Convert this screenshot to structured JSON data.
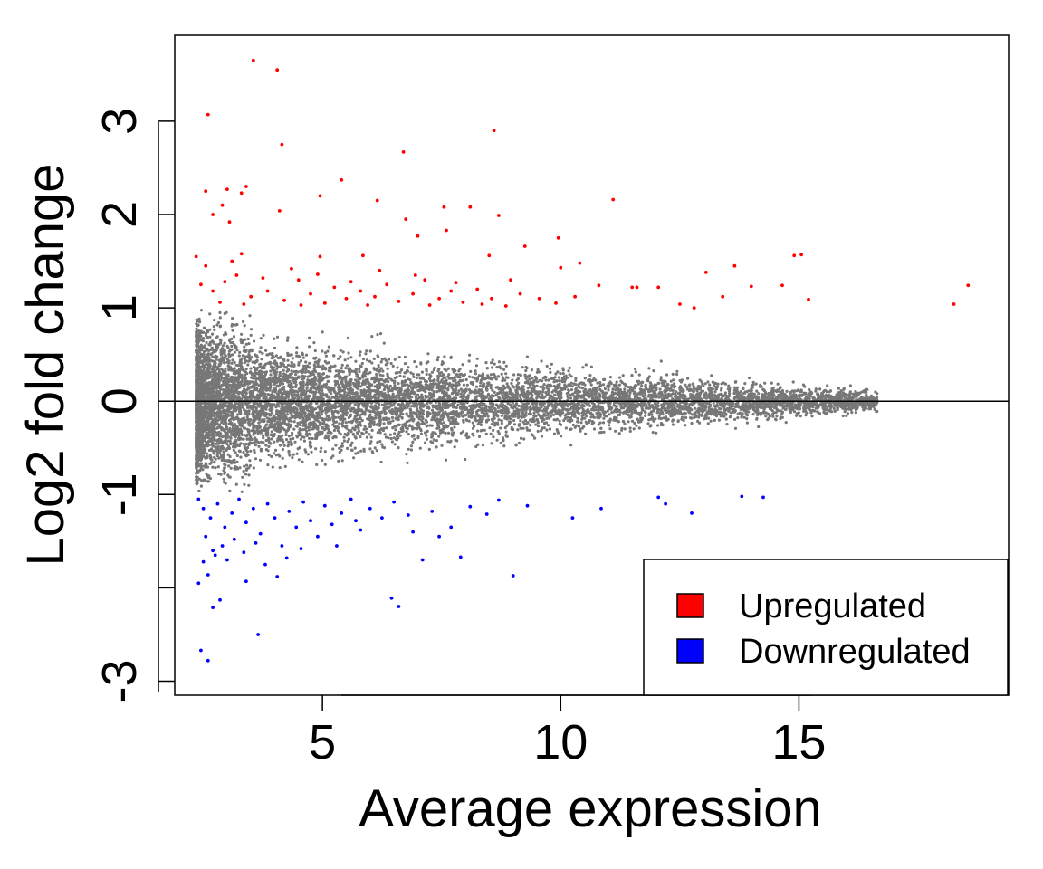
{
  "chart_data": {
    "type": "scatter",
    "xlabel": "Average expression",
    "ylabel": "Log2 fold change",
    "xlim": [
      1.9,
      19.4
    ],
    "ylim": [
      -3.15,
      3.92
    ],
    "x_ticks": [
      5,
      10,
      15
    ],
    "y_ticks": [
      -3,
      -2,
      -1,
      0,
      1,
      2,
      3
    ],
    "y_tick_labels": [
      "-3",
      "",
      "-1",
      "0",
      "1",
      "2",
      "3"
    ],
    "reference_line_y": 0,
    "grid": false,
    "legend": {
      "position": "bottom-right",
      "entries": [
        {
          "label": "Upregulated",
          "color": "#ff0000"
        },
        {
          "label": "Downregulated",
          "color": "#0000ff"
        }
      ]
    },
    "colors": {
      "nonsignificant": "#777777",
      "up": "#ff0000",
      "down": "#0000ff"
    },
    "series": [
      {
        "color": "#ff0000",
        "points": [
          [
            3.55,
            3.65
          ],
          [
            4.05,
            3.55
          ],
          [
            2.6,
            3.07
          ],
          [
            8.6,
            2.9
          ],
          [
            4.15,
            2.75
          ],
          [
            6.7,
            2.67
          ],
          [
            5.4,
            2.37
          ],
          [
            3.4,
            2.3
          ],
          [
            2.55,
            2.25
          ],
          [
            3.0,
            2.27
          ],
          [
            3.3,
            2.23
          ],
          [
            2.9,
            2.1
          ],
          [
            4.95,
            2.2
          ],
          [
            6.15,
            2.15
          ],
          [
            11.1,
            2.16
          ],
          [
            7.55,
            2.08
          ],
          [
            8.1,
            2.08
          ],
          [
            4.1,
            2.04
          ],
          [
            2.7,
            2.0
          ],
          [
            3.05,
            1.92
          ],
          [
            6.75,
            1.95
          ],
          [
            8.7,
            1.99
          ],
          [
            7.6,
            1.83
          ],
          [
            9.95,
            1.75
          ],
          [
            7.0,
            1.77
          ],
          [
            2.35,
            1.55
          ],
          [
            3.3,
            1.58
          ],
          [
            4.95,
            1.55
          ],
          [
            5.85,
            1.56
          ],
          [
            8.5,
            1.56
          ],
          [
            9.25,
            1.66
          ],
          [
            10.4,
            1.48
          ],
          [
            10.0,
            1.43
          ],
          [
            13.65,
            1.45
          ],
          [
            14.9,
            1.56
          ],
          [
            15.05,
            1.57
          ],
          [
            13.05,
            1.38
          ],
          [
            13.4,
            1.12
          ],
          [
            14.0,
            1.23
          ],
          [
            14.65,
            1.24
          ],
          [
            12.05,
            1.22
          ],
          [
            11.6,
            1.22
          ],
          [
            12.5,
            1.04
          ],
          [
            15.2,
            1.09
          ],
          [
            18.55,
            1.24
          ],
          [
            18.25,
            1.04
          ],
          [
            10.8,
            1.24
          ],
          [
            11.5,
            1.22
          ],
          [
            12.8,
            1.0
          ],
          [
            2.45,
            1.25
          ],
          [
            2.7,
            1.18
          ],
          [
            2.95,
            1.28
          ],
          [
            3.2,
            1.35
          ],
          [
            3.5,
            1.12
          ],
          [
            3.85,
            1.18
          ],
          [
            4.2,
            1.08
          ],
          [
            4.5,
            1.3
          ],
          [
            4.75,
            1.15
          ],
          [
            5.05,
            1.05
          ],
          [
            5.25,
            1.22
          ],
          [
            5.5,
            1.1
          ],
          [
            5.8,
            1.18
          ],
          [
            6.1,
            1.12
          ],
          [
            6.35,
            1.25
          ],
          [
            6.6,
            1.07
          ],
          [
            6.9,
            1.15
          ],
          [
            7.15,
            1.3
          ],
          [
            7.45,
            1.1
          ],
          [
            7.7,
            1.18
          ],
          [
            7.95,
            1.06
          ],
          [
            8.25,
            1.2
          ],
          [
            8.55,
            1.1
          ],
          [
            8.85,
            1.02
          ],
          [
            9.15,
            1.15
          ],
          [
            9.55,
            1.1
          ],
          [
            9.9,
            1.05
          ],
          [
            10.3,
            1.12
          ],
          [
            2.55,
            1.45
          ],
          [
            3.1,
            1.5
          ],
          [
            3.75,
            1.32
          ],
          [
            4.35,
            1.42
          ],
          [
            4.9,
            1.36
          ],
          [
            5.6,
            1.28
          ],
          [
            6.2,
            1.4
          ],
          [
            6.95,
            1.35
          ],
          [
            7.8,
            1.27
          ],
          [
            8.95,
            1.3
          ],
          [
            2.85,
            1.06
          ],
          [
            3.35,
            1.04
          ],
          [
            4.55,
            1.03
          ],
          [
            5.95,
            1.03
          ],
          [
            7.25,
            1.03
          ],
          [
            8.35,
            1.04
          ]
        ]
      },
      {
        "color": "#0000ff",
        "points": [
          [
            2.45,
            -2.67
          ],
          [
            2.6,
            -2.78
          ],
          [
            3.65,
            -2.5
          ],
          [
            6.6,
            -2.2
          ],
          [
            6.45,
            -2.11
          ],
          [
            2.7,
            -2.21
          ],
          [
            2.85,
            -2.13
          ],
          [
            9.0,
            -1.87
          ],
          [
            2.4,
            -1.95
          ],
          [
            3.4,
            -1.93
          ],
          [
            4.05,
            -1.88
          ],
          [
            2.6,
            -1.86
          ],
          [
            10.25,
            -1.25
          ],
          [
            10.85,
            -1.15
          ],
          [
            12.05,
            -1.03
          ],
          [
            12.2,
            -1.1
          ],
          [
            12.75,
            -1.2
          ],
          [
            13.8,
            -1.02
          ],
          [
            14.25,
            -1.03
          ],
          [
            7.1,
            -1.7
          ],
          [
            7.9,
            -1.67
          ],
          [
            7.45,
            -1.45
          ],
          [
            2.4,
            -1.05
          ],
          [
            2.5,
            -1.15
          ],
          [
            2.65,
            -1.25
          ],
          [
            2.8,
            -1.1
          ],
          [
            2.95,
            -1.35
          ],
          [
            3.1,
            -1.2
          ],
          [
            3.25,
            -1.05
          ],
          [
            3.4,
            -1.3
          ],
          [
            3.55,
            -1.15
          ],
          [
            3.7,
            -1.42
          ],
          [
            3.85,
            -1.1
          ],
          [
            4.0,
            -1.25
          ],
          [
            4.15,
            -1.55
          ],
          [
            4.3,
            -1.18
          ],
          [
            4.45,
            -1.35
          ],
          [
            4.6,
            -1.08
          ],
          [
            4.75,
            -1.28
          ],
          [
            4.9,
            -1.45
          ],
          [
            5.05,
            -1.12
          ],
          [
            5.2,
            -1.32
          ],
          [
            5.4,
            -1.2
          ],
          [
            5.6,
            -1.05
          ],
          [
            5.8,
            -1.38
          ],
          [
            6.0,
            -1.15
          ],
          [
            6.25,
            -1.25
          ],
          [
            6.5,
            -1.08
          ],
          [
            2.55,
            -1.45
          ],
          [
            2.7,
            -1.6
          ],
          [
            2.9,
            -1.55
          ],
          [
            3.15,
            -1.48
          ],
          [
            3.35,
            -1.62
          ],
          [
            3.6,
            -1.52
          ],
          [
            4.25,
            -1.68
          ],
          [
            4.55,
            -1.58
          ],
          [
            2.5,
            -1.72
          ],
          [
            2.75,
            -1.65
          ],
          [
            3.0,
            -1.7
          ],
          [
            3.8,
            -1.75
          ],
          [
            6.8,
            -1.22
          ],
          [
            7.3,
            -1.18
          ],
          [
            8.1,
            -1.13
          ],
          [
            8.45,
            -1.21
          ],
          [
            8.7,
            -1.06
          ],
          [
            9.3,
            -1.12
          ],
          [
            6.9,
            -1.4
          ],
          [
            7.7,
            -1.35
          ],
          [
            5.3,
            -1.55
          ],
          [
            5.7,
            -1.28
          ]
        ]
      }
    ]
  }
}
